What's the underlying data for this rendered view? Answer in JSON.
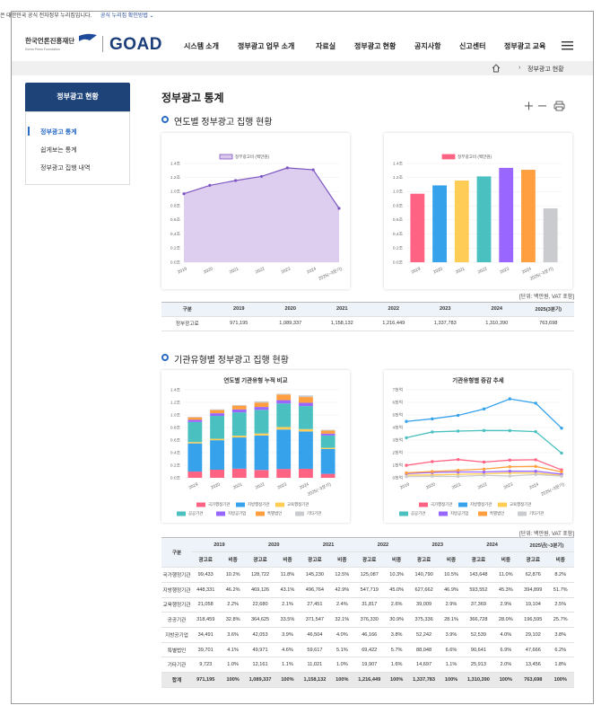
{
  "banner": {
    "text": "은 대한민국 공식 전자정부 누리집입니다.",
    "link": "공식 누리집 확인방법"
  },
  "header": {
    "logo_kr": "한국언론진흥재단",
    "logo_en": "Korea Press Foundation",
    "brand": "GOAD",
    "nav": [
      "시스템 소개",
      "정부광고 업무 소개",
      "자료실",
      "정부광고 현황",
      "공지사항",
      "신고센터",
      "정부광고 교육"
    ]
  },
  "breadcrumb": {
    "current": "정부광고 현황"
  },
  "sidebar": {
    "title": "정부광고 현황",
    "items": [
      "정부광고 통계",
      "쉽게보는 통계",
      "정부광고 집행 내역"
    ]
  },
  "page": {
    "title": "정부광고 통계",
    "section1": "연도별 정부광고 집행 현황",
    "section2": "기관유형별 정부광고 집행 현황"
  },
  "chart_data": [
    {
      "type": "area",
      "categories": [
        "2019",
        "2020",
        "2021",
        "2022",
        "2023",
        "2024",
        "2025(~3분기)"
      ],
      "series": [
        {
          "name": "정부광고비 (백만원)",
          "color": "#7e57c2",
          "fill": "#d9c8ec",
          "values": [
            0.971195,
            1.089337,
            1.158132,
            1.216449,
            1.337783,
            1.31039,
            0.763698
          ]
        }
      ],
      "ylim": [
        0,
        1.4
      ],
      "yticks": [
        {
          "value": 0,
          "label": "0.0조"
        },
        {
          "value": 0.2,
          "label": "0.2조"
        },
        {
          "value": 0.4,
          "label": "0.4조"
        },
        {
          "value": 0.6,
          "label": "0.6조"
        },
        {
          "value": 0.8,
          "label": "0.8조"
        },
        {
          "value": 1.0,
          "label": "1.0조"
        },
        {
          "value": 1.2,
          "label": "1.2조"
        },
        {
          "value": 1.4,
          "label": "1.4조"
        }
      ],
      "grid": true
    },
    {
      "type": "bar",
      "categories": [
        "2019",
        "2020",
        "2021",
        "2022",
        "2023",
        "2024",
        "2025(~3분기)"
      ],
      "colors": [
        "#ff6384",
        "#36a2eb",
        "#ffcd56",
        "#4bc0c0",
        "#9966ff",
        "#ff9f40",
        "#c9cbcf"
      ],
      "series": [
        {
          "name": "정부광고비 (백만원)",
          "values": [
            0.971195,
            1.089337,
            1.158132,
            1.216449,
            1.337783,
            1.31039,
            0.763698
          ]
        }
      ],
      "ylim": [
        0,
        1.4
      ],
      "yticks": [
        {
          "value": 0,
          "label": "0.0조"
        },
        {
          "value": 0.2,
          "label": "0.2조"
        },
        {
          "value": 0.4,
          "label": "0.4조"
        },
        {
          "value": 0.6,
          "label": "0.6조"
        },
        {
          "value": 0.8,
          "label": "0.8조"
        },
        {
          "value": 1.0,
          "label": "1.0조"
        },
        {
          "value": 1.2,
          "label": "1.2조"
        },
        {
          "value": 1.4,
          "label": "1.4조"
        }
      ],
      "grid": true
    },
    {
      "type": "stacked-bar",
      "title": "연도별 기관유형 누적 비교",
      "categories": [
        "2019",
        "2020",
        "2021",
        "2022",
        "2023",
        "2024",
        "2025(~3분기)"
      ],
      "series": [
        {
          "name": "국가행정기관",
          "color": "#ff6384",
          "values": [
            0.099433,
            0.128722,
            0.14523,
            0.125087,
            0.14079,
            0.143648,
            0.062876
          ]
        },
        {
          "name": "지방행정기관",
          "color": "#36a2eb",
          "values": [
            0.448331,
            0.469126,
            0.496764,
            0.547719,
            0.627662,
            0.593552,
            0.394899
          ]
        },
        {
          "name": "교육행정기관",
          "color": "#ffcd56",
          "values": [
            0.021058,
            0.02268,
            0.027451,
            0.031817,
            0.039009,
            0.037369,
            0.019104
          ]
        },
        {
          "name": "공공기관",
          "color": "#4bc0c0",
          "values": [
            0.318459,
            0.364625,
            0.371547,
            0.37633,
            0.375336,
            0.366728,
            0.196595
          ]
        },
        {
          "name": "지방공기업",
          "color": "#9966ff",
          "values": [
            0.034491,
            0.042053,
            0.046504,
            0.046166,
            0.052242,
            0.052539,
            0.029102
          ]
        },
        {
          "name": "특별법인",
          "color": "#ff9f40",
          "values": [
            0.039701,
            0.049971,
            0.059617,
            0.069422,
            0.088048,
            0.090641,
            0.047666
          ]
        },
        {
          "name": "기타기관",
          "color": "#c9cbcf",
          "values": [
            0.009723,
            0.012161,
            0.011021,
            0.019907,
            0.014697,
            0.025913,
            0.013456
          ]
        }
      ],
      "ylim": [
        0,
        1.4
      ],
      "yticks": [
        {
          "value": 0,
          "label": "0.0조"
        },
        {
          "value": 0.2,
          "label": "0.2조"
        },
        {
          "value": 0.4,
          "label": "0.4조"
        },
        {
          "value": 0.6,
          "label": "0.6조"
        },
        {
          "value": 0.8,
          "label": "0.8조"
        },
        {
          "value": 1.0,
          "label": "1.0조"
        },
        {
          "value": 1.2,
          "label": "1.2조"
        },
        {
          "value": 1.4,
          "label": "1.4조"
        }
      ],
      "grid": true
    },
    {
      "type": "line",
      "title": "기관유형별 증감 추세",
      "categories": [
        "2019",
        "2020",
        "2021",
        "2022",
        "2023",
        "2024",
        "2025(~3분기)"
      ],
      "series": [
        {
          "name": "국가행정기관",
          "color": "#ff6384",
          "values": [
            0.99433,
            1.28722,
            1.4523,
            1.25087,
            1.4079,
            1.43648,
            0.62876
          ]
        },
        {
          "name": "지방행정기관",
          "color": "#36a2eb",
          "values": [
            4.48331,
            4.69126,
            4.96764,
            5.47719,
            6.27662,
            5.93552,
            3.94899
          ]
        },
        {
          "name": "교육행정기관",
          "color": "#ffcd56",
          "values": [
            0.21058,
            0.2268,
            0.27451,
            0.31817,
            0.39009,
            0.37369,
            0.19104
          ]
        },
        {
          "name": "공공기관",
          "color": "#4bc0c0",
          "values": [
            3.18459,
            3.64625,
            3.71547,
            3.7633,
            3.75336,
            3.66728,
            1.96595
          ]
        },
        {
          "name": "지방공기업",
          "color": "#9966ff",
          "values": [
            0.34491,
            0.42053,
            0.46504,
            0.46166,
            0.52242,
            0.52539,
            0.29102
          ]
        },
        {
          "name": "특별법인",
          "color": "#ff9f40",
          "values": [
            0.39701,
            0.49971,
            0.59617,
            0.69422,
            0.88048,
            0.90641,
            0.47666
          ]
        },
        {
          "name": "기타기관",
          "color": "#c9cbcf",
          "values": [
            0.09723,
            0.12161,
            0.11021,
            0.19907,
            0.14697,
            0.25913,
            0.13456
          ]
        }
      ],
      "ylim": [
        0,
        7
      ],
      "yticks": [
        {
          "value": 0,
          "label": "0천억"
        },
        {
          "value": 1,
          "label": "1천억"
        },
        {
          "value": 2,
          "label": "2천억"
        },
        {
          "value": 3,
          "label": "3천억"
        },
        {
          "value": 4,
          "label": "4천억"
        },
        {
          "value": 5,
          "label": "5천억"
        },
        {
          "value": 6,
          "label": "6천억"
        },
        {
          "value": 7,
          "label": "7천억"
        }
      ],
      "grid": true
    }
  ],
  "table1": {
    "unit": "[단위: 백만원, VAT 포함]",
    "header": [
      "구분",
      "2019",
      "2020",
      "2021",
      "2022",
      "2023",
      "2024",
      "2025(3분기)"
    ],
    "rows": [
      [
        "정부광고료",
        "971,195",
        "1,089,337",
        "1,158,132",
        "1,216,449",
        "1,337,783",
        "1,310,390",
        "763,698"
      ]
    ]
  },
  "table2": {
    "unit": "[단위: 백만원, VAT 포함]",
    "header_first": "구분",
    "header_years": [
      "2019",
      "2020",
      "2021",
      "2022",
      "2023",
      "2024",
      "2025년(~3분기)"
    ],
    "sub_headers": [
      "광고료",
      "비중",
      "광고료",
      "비중",
      "광고료",
      "비중",
      "광고료",
      "비중",
      "광고료",
      "비중",
      "광고료",
      "비중",
      "광고료",
      "비중"
    ],
    "rows": [
      [
        "국가행정기관",
        "99,433",
        "10.2%",
        "128,722",
        "11.8%",
        "145,230",
        "12.5%",
        "125,087",
        "10.3%",
        "140,790",
        "10.5%",
        "143,648",
        "11.0%",
        "62,876",
        "8.2%"
      ],
      [
        "지방행정기관",
        "448,331",
        "46.2%",
        "469,126",
        "43.1%",
        "496,764",
        "42.9%",
        "547,719",
        "45.0%",
        "627,662",
        "46.9%",
        "593,552",
        "45.3%",
        "394,899",
        "51.7%"
      ],
      [
        "교육행정기관",
        "21,058",
        "2.2%",
        "22,680",
        "2.1%",
        "27,451",
        "2.4%",
        "31,817",
        "2.6%",
        "39,009",
        "2.9%",
        "37,369",
        "2.9%",
        "19,104",
        "2.5%"
      ],
      [
        "공공기관",
        "318,459",
        "32.8%",
        "364,625",
        "33.5%",
        "371,547",
        "32.1%",
        "376,330",
        "30.9%",
        "375,336",
        "28.1%",
        "366,728",
        "28.0%",
        "196,595",
        "25.7%"
      ],
      [
        "지방공기업",
        "34,491",
        "3.6%",
        "42,053",
        "3.9%",
        "46,504",
        "4.0%",
        "46,166",
        "3.8%",
        "52,242",
        "3.9%",
        "52,539",
        "4.0%",
        "29,102",
        "3.8%"
      ],
      [
        "특별법인",
        "39,701",
        "4.1%",
        "49,971",
        "4.6%",
        "59,617",
        "5.1%",
        "69,422",
        "5.7%",
        "88,048",
        "6.6%",
        "90,641",
        "6.9%",
        "47,666",
        "6.2%"
      ],
      [
        "기타기관",
        "9,723",
        "1.0%",
        "12,161",
        "1.1%",
        "11,021",
        "1.0%",
        "19,907",
        "1.6%",
        "14,697",
        "1.1%",
        "25,913",
        "2.0%",
        "13,456",
        "1.8%"
      ],
      [
        "합계",
        "971,195",
        "100%",
        "1,089,337",
        "100%",
        "1,158,132",
        "100%",
        "1,216,449",
        "100%",
        "1,337,783",
        "100%",
        "1,310,390",
        "100%",
        "763,698",
        "100%"
      ]
    ]
  }
}
